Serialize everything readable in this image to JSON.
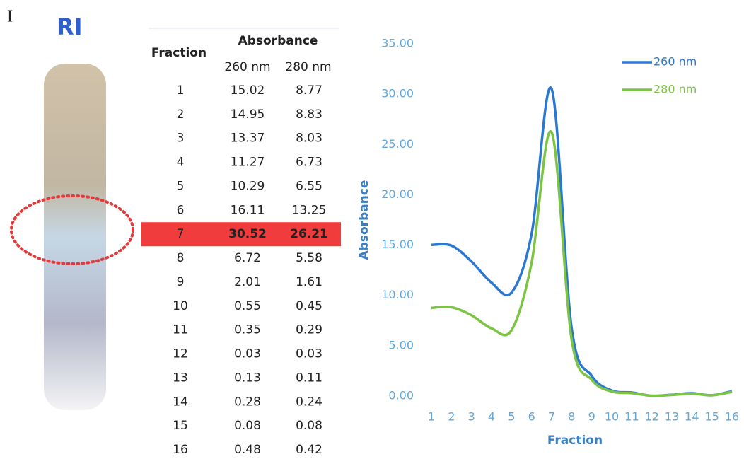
{
  "panel_label": "I",
  "tube_label": "RI",
  "table": {
    "header": {
      "fraction": "Fraction",
      "absorbance": "Absorbance",
      "col_260": "260 nm",
      "col_280": "280 nm"
    },
    "highlight_row": 6,
    "rows": [
      [
        1,
        15.02,
        8.77
      ],
      [
        2,
        14.95,
        8.83
      ],
      [
        3,
        13.37,
        8.03
      ],
      [
        4,
        11.27,
        6.73
      ],
      [
        5,
        10.29,
        6.55
      ],
      [
        6,
        16.11,
        13.25
      ],
      [
        7,
        30.52,
        26.21
      ],
      [
        8,
        6.72,
        5.58
      ],
      [
        9,
        2.01,
        1.61
      ],
      [
        10,
        0.55,
        0.45
      ],
      [
        11,
        0.35,
        0.29
      ],
      [
        12,
        0.03,
        0.03
      ],
      [
        13,
        0.13,
        0.11
      ],
      [
        14,
        0.28,
        0.24
      ],
      [
        15,
        0.08,
        0.08
      ],
      [
        16,
        0.48,
        0.42
      ]
    ]
  },
  "chart_data": {
    "type": "line",
    "x_label": "Fraction",
    "y_label": "Absorbance",
    "x": [
      1,
      2,
      3,
      4,
      5,
      6,
      7,
      8,
      9,
      10,
      11,
      12,
      13,
      14,
      15,
      16
    ],
    "series": [
      {
        "name": "260 nm",
        "color": "#2a78d2",
        "values": [
          15.02,
          14.95,
          13.37,
          11.27,
          10.29,
          16.11,
          30.52,
          6.72,
          2.01,
          0.55,
          0.35,
          0.03,
          0.13,
          0.28,
          0.08,
          0.48
        ]
      },
      {
        "name": "280 nm",
        "color": "#7cc443",
        "values": [
          8.77,
          8.83,
          8.03,
          6.73,
          6.55,
          13.25,
          26.21,
          5.58,
          1.61,
          0.45,
          0.29,
          0.03,
          0.11,
          0.24,
          0.08,
          0.42
        ]
      }
    ],
    "xlim": [
      1,
      16
    ],
    "xticks": [
      1,
      2,
      3,
      4,
      5,
      6,
      7,
      8,
      9,
      10,
      11,
      12,
      13,
      14,
      15,
      16
    ],
    "ylim": [
      0,
      35
    ],
    "yticks": [
      {
        "value": 0,
        "label": "0.00"
      },
      {
        "value": 5,
        "label": "5.00"
      },
      {
        "value": 10,
        "label": "10.00"
      },
      {
        "value": 15,
        "label": "15.00"
      },
      {
        "value": 20,
        "label": "20.00"
      },
      {
        "value": 25,
        "label": "25.00"
      },
      {
        "value": 30,
        "label": "30.00"
      },
      {
        "value": 35,
        "label": "35.00"
      }
    ],
    "grid": false,
    "legend": "top-right"
  }
}
